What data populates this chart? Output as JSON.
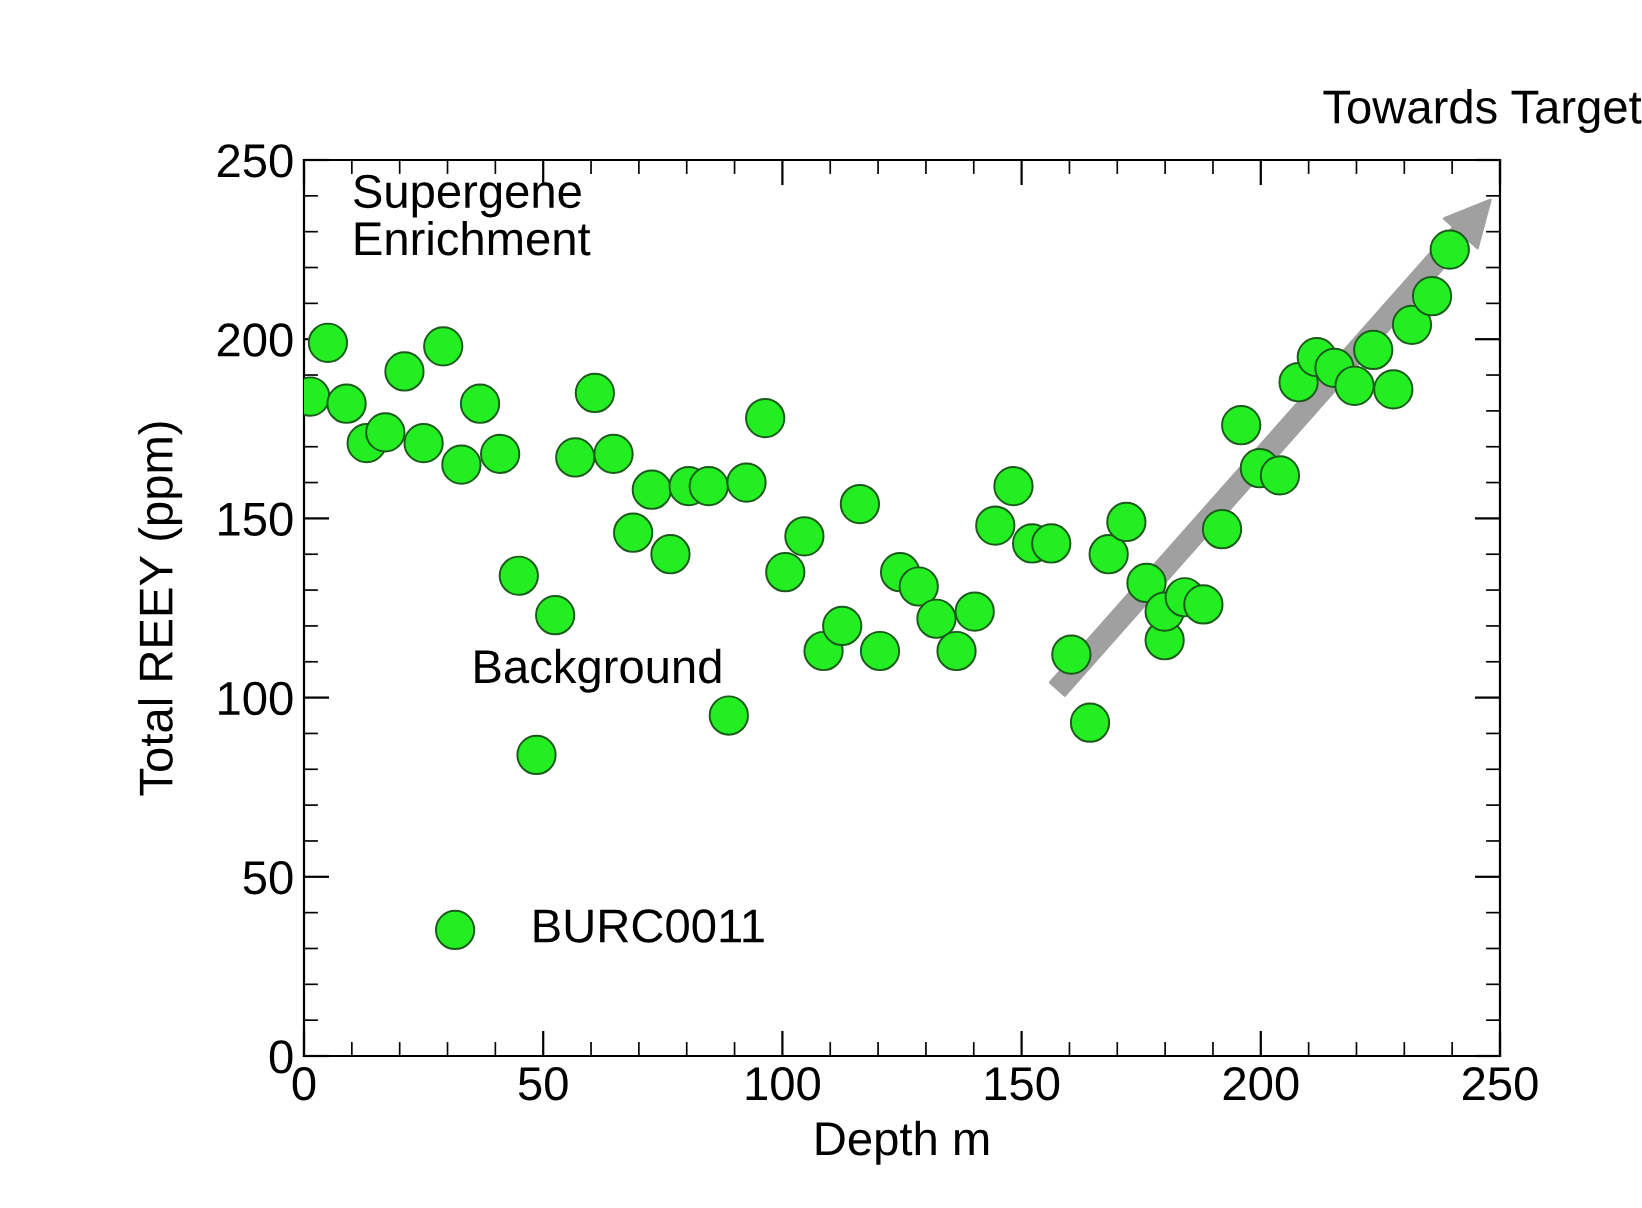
{
  "chart_data": {
    "type": "scatter",
    "xlabel": "Depth m",
    "ylabel": "Total REEY (ppm)",
    "xlim": [
      0,
      250
    ],
    "xticks": [
      0,
      50,
      100,
      150,
      200,
      250
    ],
    "ylim": [
      0,
      250
    ],
    "yticks": [
      0,
      50,
      100,
      150,
      200,
      250
    ],
    "grid": false,
    "legend": "bottom left",
    "marker": "circle",
    "annotations": [
      "Supergene Enrichment",
      "Background",
      "Towards Target"
    ],
    "series": [
      {
        "name": "BURC0011",
        "color": "#22ee22",
        "x": [
          1.3,
          5,
          8.9,
          13.1,
          17,
          21,
          25,
          29.1,
          32.9,
          36.8,
          41,
          44.9,
          48.6,
          52.5,
          56.7,
          60.8,
          64.7,
          68.8,
          72.7,
          76.6,
          80.4,
          84.6,
          88.8,
          92.5,
          96.4,
          100.6,
          104.6,
          108.6,
          112.5,
          116.2,
          120.4,
          124.6,
          128.5,
          132.2,
          136.4,
          140.2,
          144.5,
          148.3,
          152.2,
          156.2,
          160.4,
          164.3,
          168.2,
          171.9,
          176.1,
          179.9,
          179.9,
          184.1,
          188,
          191.9,
          195.9,
          199.8,
          204,
          207.9,
          211.7,
          215.4,
          219.6,
          223.5,
          227.7,
          231.6,
          235.8,
          239.5
        ],
        "values": [
          184,
          199,
          182,
          171,
          174,
          191,
          171,
          198,
          165,
          182,
          168,
          134,
          84,
          123,
          167,
          185,
          168,
          146,
          158,
          140,
          159,
          159,
          95,
          160,
          178,
          135,
          145,
          113,
          120,
          154,
          113,
          135,
          131,
          122,
          113,
          124,
          148,
          159,
          143,
          143,
          112,
          93,
          140,
          149,
          132,
          116,
          124,
          128,
          126,
          147,
          176,
          164,
          162,
          188,
          195,
          192,
          187,
          197,
          186,
          204,
          212,
          225
        ]
      }
    ]
  }
}
